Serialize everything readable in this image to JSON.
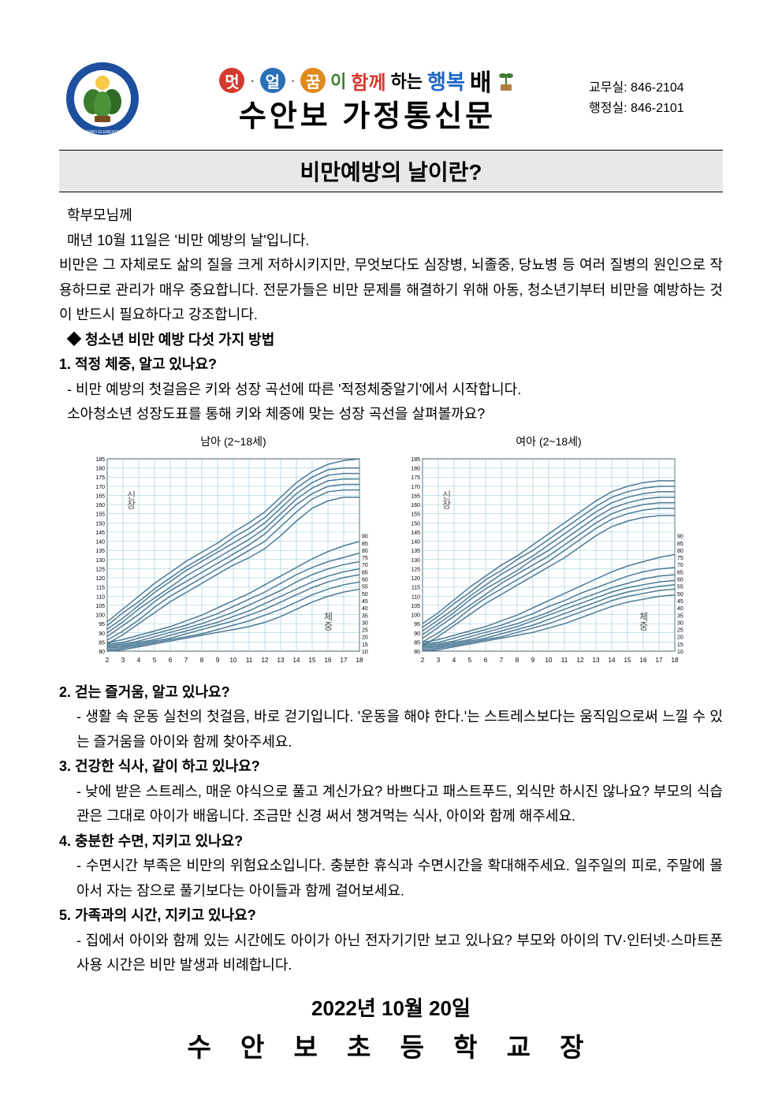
{
  "header": {
    "logo": {
      "ring_color": "#1e4f9e",
      "inner_color": "#3b7d2d",
      "ring_text": "SUANBO ELEMENTARY SCHOOL",
      "badge_top_color": "#f6c948"
    },
    "slogan": {
      "circle1": "멋",
      "circle1_bg": "#d43a2e",
      "circle2": "얼",
      "circle2_bg": "#2a6fb5",
      "circle3": "꿈",
      "circle3_bg": "#e08a1e",
      "tail1": "이",
      "col_tail1": "#3b7d2d",
      "w_hamkke": "함께",
      "col_hamkke": "#d43a2e",
      "w_haneun": "하는",
      "col_haneun": "#000000",
      "w_haengbok": "행복",
      "col_haengbok": "#1e66c7",
      "w_bae": "배",
      "col_bae": "#2a2a2a",
      "sprout_color": "#3b7d2d",
      "dot_color": "#666666"
    },
    "title": "수안보  가정통신문",
    "contacts": {
      "line1": "교무실: 846-2104",
      "line2": "행정실: 846-2101"
    }
  },
  "subtitle": "비만예방의 날이란?",
  "body": {
    "greeting": "학부모님께",
    "intro1": "매년 10월 11일은 '비만 예방의 날'입니다.",
    "intro2": "비만은 그 자체로도 삶의 질을 크게 저하시키지만, 무엇보다도 심장병, 뇌졸중, 당뇨병 등 여러 질병의 원인으로 작용하므로 관리가 매우 중요합니다. 전문가들은 비만 문제를 해결하기 위해 아동, 청소년기부터 비만을 예방하는 것이 반드시 필요하다고 강조합니다.",
    "list_title": "◆ 청소년 비만 예방 다섯 가지 방법",
    "s1_head": "1. 적정 체중, 알고 있나요?",
    "s1_l1": "- 비만 예방의 첫걸음은 키와 성장 곡선에 따른 '적정체중알기'에서 시작합니다.",
    "s1_l2": "소아청소년 성장도표를 통해 키와 체중에 맞는 성장 곡선을 살펴볼까요?",
    "s2_head": "2. 걷는 즐거움, 알고 있나요?",
    "s2_t": "- 생활 속 운동 실천의 첫걸음, 바로 걷기입니다. '운동을 해야 한다.'는 스트레스보다는 움직임으로써 느낄 수 있는 즐거움을 아이와 함께 찾아주세요.",
    "s3_head": "3. 건강한 식사, 같이 하고 있나요?",
    "s3_t": "- 낮에 받은 스트레스, 매운 야식으로 풀고 계신가요? 바쁘다고 패스트푸드, 외식만 하시진 않나요? 부모의 식습관은 그대로 아이가 배웁니다. 조금만 신경 써서 챙겨먹는 식사, 아이와 함께 해주세요.",
    "s4_head": "4. 충분한 수면, 지키고 있나요?",
    "s4_t": "- 수면시간 부족은 비만의 위험요소입니다. 충분한 휴식과 수면시간을 확대해주세요. 일주일의 피로, 주말에 몰아서 자는 잠으로 풀기보다는 아이들과 함께 걸어보세요.",
    "s5_head": "5. 가족과의 시간, 지키고 있나요?",
    "s5_t": "- 집에서 아이와 함께 있는 시간에도 아이가 아닌 전자기기만 보고 있나요? 부모와 아이의 TV·인터넷·스마트폰 사용 시간은 비만 발생과 비례합니다."
  },
  "charts": {
    "left_caption": "남아 (2~18세)",
    "right_caption": "여아 (2~18세)",
    "label_height": "신장",
    "label_weight": "체중",
    "style": {
      "bg": "#ffffff",
      "grid_color": "#8ec7d9",
      "axis_color": "#000000",
      "curve_color": "#3a6b8a",
      "label_fontsize": 12,
      "y_range_height": [
        80,
        185
      ],
      "y_range_weight": [
        10,
        90
      ],
      "x_range": [
        2,
        18
      ],
      "x_ticks": [
        2,
        3,
        4,
        5,
        6,
        7,
        8,
        9,
        10,
        11,
        12,
        13,
        14,
        15,
        16,
        17,
        18
      ],
      "y_ticks_left_upper": [
        80,
        85,
        90,
        95,
        100,
        105,
        110,
        115,
        120,
        125,
        130,
        135,
        140,
        145,
        150,
        155,
        160,
        165,
        170,
        175,
        180,
        185
      ],
      "y_ticks_right_lower": [
        10,
        15,
        20,
        25,
        30,
        35,
        40,
        45,
        50,
        55,
        60,
        65,
        70,
        75,
        80,
        85,
        90
      ],
      "curve_count": 7,
      "curve_width": 1.5
    },
    "boys_height": [
      [
        84,
        89,
        95,
        101,
        107,
        112,
        117,
        122,
        127,
        131,
        136,
        143,
        151,
        158,
        162,
        164,
        164
      ],
      [
        86,
        91,
        97,
        104,
        110,
        115,
        120,
        125,
        130,
        135,
        140,
        148,
        156,
        163,
        167,
        168,
        168
      ],
      [
        88,
        94,
        100,
        107,
        113,
        118,
        123,
        128,
        133,
        138,
        144,
        152,
        160,
        166,
        170,
        171,
        171
      ],
      [
        90,
        96,
        103,
        109,
        115,
        121,
        126,
        131,
        136,
        141,
        147,
        155,
        163,
        169,
        173,
        174,
        174
      ],
      [
        92,
        98,
        105,
        112,
        118,
        124,
        129,
        134,
        139,
        144,
        150,
        158,
        166,
        172,
        176,
        177,
        177
      ],
      [
        94,
        101,
        107,
        114,
        120,
        126,
        131,
        136,
        142,
        147,
        153,
        161,
        169,
        175,
        179,
        180,
        180
      ],
      [
        96,
        103,
        110,
        117,
        123,
        129,
        134,
        139,
        145,
        150,
        156,
        164,
        172,
        178,
        182,
        184,
        185
      ]
    ],
    "boys_weight": [
      [
        10,
        11,
        13,
        15,
        17,
        19,
        21,
        23,
        25,
        27,
        30,
        34,
        39,
        44,
        48,
        51,
        53
      ],
      [
        11,
        12,
        14,
        16,
        18,
        20,
        22,
        25,
        28,
        31,
        35,
        39,
        44,
        49,
        53,
        56,
        58
      ],
      [
        12,
        13,
        15,
        17,
        19,
        22,
        25,
        28,
        31,
        35,
        39,
        44,
        49,
        54,
        58,
        61,
        63
      ],
      [
        13,
        14,
        16,
        18,
        21,
        24,
        27,
        30,
        34,
        38,
        43,
        48,
        53,
        58,
        62,
        65,
        67
      ],
      [
        14,
        15,
        17,
        20,
        23,
        26,
        29,
        33,
        37,
        42,
        47,
        52,
        58,
        63,
        67,
        70,
        72
      ],
      [
        15,
        16,
        19,
        22,
        25,
        28,
        32,
        36,
        41,
        46,
        51,
        57,
        63,
        68,
        72,
        75,
        78
      ],
      [
        16,
        18,
        21,
        24,
        27,
        31,
        35,
        40,
        45,
        50,
        56,
        62,
        68,
        74,
        79,
        83,
        86
      ]
    ],
    "girls_height": [
      [
        83,
        88,
        94,
        100,
        106,
        111,
        116,
        121,
        126,
        131,
        137,
        143,
        148,
        151,
        153,
        154,
        154
      ],
      [
        85,
        90,
        96,
        103,
        109,
        114,
        119,
        124,
        129,
        135,
        141,
        147,
        152,
        155,
        157,
        158,
        158
      ],
      [
        87,
        93,
        99,
        105,
        111,
        117,
        122,
        127,
        132,
        138,
        144,
        150,
        155,
        158,
        160,
        161,
        161
      ],
      [
        89,
        95,
        101,
        108,
        114,
        119,
        124,
        130,
        135,
        141,
        147,
        153,
        158,
        161,
        163,
        164,
        164
      ],
      [
        91,
        97,
        103,
        110,
        116,
        122,
        127,
        132,
        138,
        144,
        150,
        156,
        161,
        164,
        166,
        167,
        167
      ],
      [
        93,
        99,
        106,
        112,
        119,
        124,
        130,
        135,
        141,
        147,
        153,
        159,
        164,
        167,
        169,
        170,
        170
      ],
      [
        95,
        101,
        108,
        115,
        121,
        127,
        132,
        138,
        144,
        150,
        156,
        162,
        167,
        170,
        172,
        173,
        173
      ]
    ],
    "girls_weight": [
      [
        10,
        11,
        13,
        15,
        17,
        19,
        21,
        23,
        26,
        29,
        33,
        37,
        41,
        44,
        46,
        48,
        49
      ],
      [
        11,
        12,
        14,
        16,
        18,
        20,
        23,
        26,
        29,
        33,
        37,
        41,
        45,
        48,
        50,
        52,
        53
      ],
      [
        12,
        13,
        15,
        17,
        19,
        22,
        25,
        28,
        32,
        36,
        40,
        44,
        48,
        51,
        53,
        55,
        56
      ],
      [
        13,
        14,
        16,
        18,
        21,
        24,
        27,
        31,
        35,
        39,
        43,
        47,
        51,
        54,
        56,
        58,
        59
      ],
      [
        14,
        15,
        17,
        20,
        23,
        26,
        29,
        33,
        37,
        42,
        46,
        50,
        54,
        57,
        60,
        62,
        63
      ],
      [
        15,
        16,
        19,
        22,
        25,
        28,
        32,
        36,
        41,
        45,
        50,
        54,
        58,
        62,
        65,
        67,
        68
      ],
      [
        16,
        18,
        21,
        24,
        27,
        31,
        35,
        40,
        45,
        50,
        55,
        60,
        65,
        69,
        72,
        75,
        77
      ]
    ]
  },
  "footer": {
    "date": "2022년  10월  20일",
    "signature": "수 안 보 초 등 학 교 장"
  }
}
